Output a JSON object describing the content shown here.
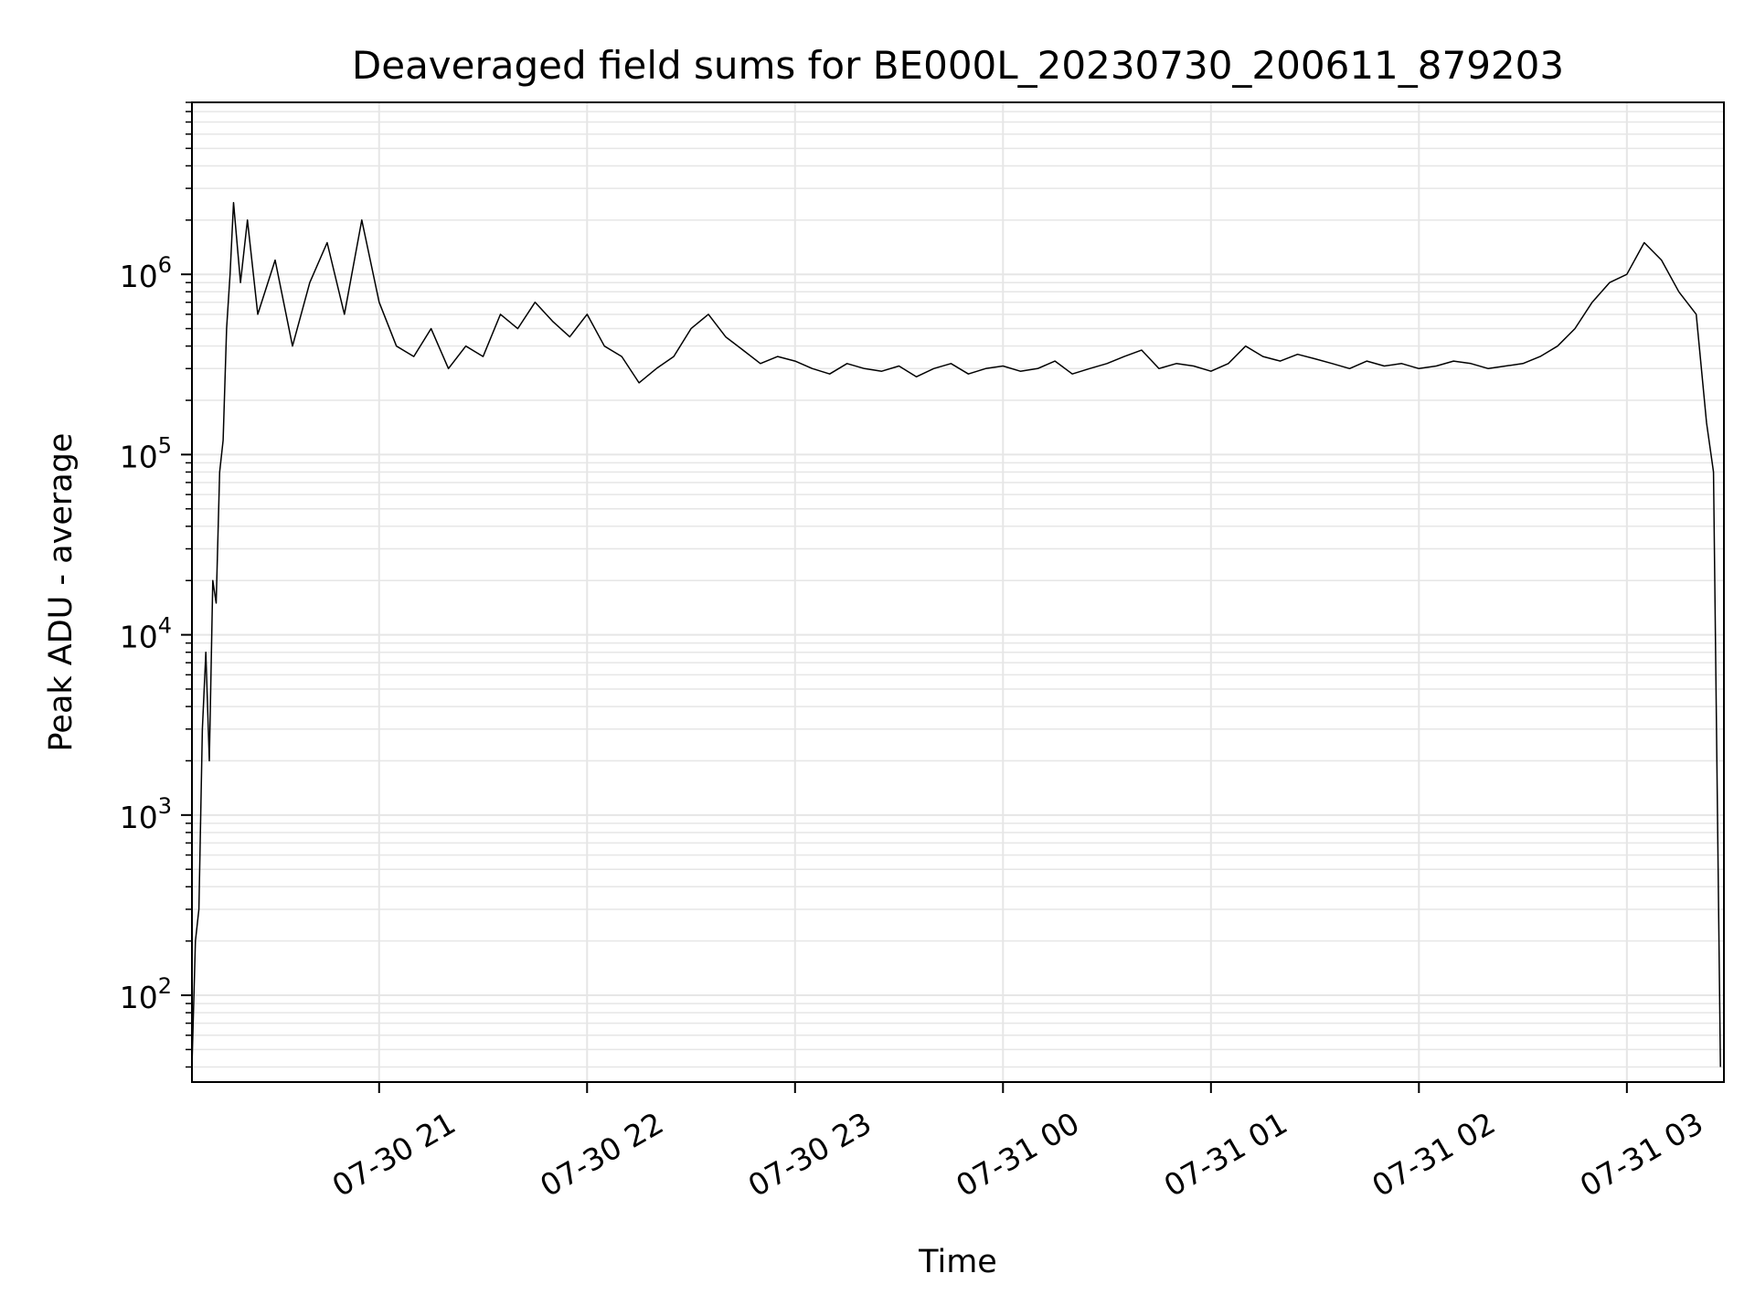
{
  "chart_data": {
    "type": "line",
    "title": "Deaveraged field sums for BE000L_20230730_200611_879203",
    "xlabel": "Time",
    "ylabel": "Peak ADU - average",
    "yscale": "log",
    "ylim": [
      33,
      9000000
    ],
    "xlim": [
      "07-30 20:06",
      "07-31 03:28"
    ],
    "grid": true,
    "line_color": "#000000",
    "grid_color": "#e6e6e6",
    "x_ticks": [
      {
        "value": "07-30 21:00",
        "label": "07-30 21"
      },
      {
        "value": "07-30 22:00",
        "label": "07-30 22"
      },
      {
        "value": "07-30 23:00",
        "label": "07-30 23"
      },
      {
        "value": "07-31 00:00",
        "label": "07-31 00"
      },
      {
        "value": "07-31 01:00",
        "label": "07-31 01"
      },
      {
        "value": "07-31 02:00",
        "label": "07-31 02"
      },
      {
        "value": "07-31 03:00",
        "label": "07-31 03"
      }
    ],
    "y_ticks": [
      {
        "value": 100,
        "base": "10",
        "exp": "2"
      },
      {
        "value": 1000,
        "base": "10",
        "exp": "3"
      },
      {
        "value": 10000,
        "base": "10",
        "exp": "4"
      },
      {
        "value": 100000,
        "base": "10",
        "exp": "5"
      },
      {
        "value": 1000000,
        "base": "10",
        "exp": "6"
      }
    ],
    "series": [
      {
        "points": [
          [
            "07-30 20:06",
            40
          ],
          [
            "07-30 20:07",
            200
          ],
          [
            "07-30 20:08",
            300
          ],
          [
            "07-30 20:09",
            3000
          ],
          [
            "07-30 20:10",
            8000
          ],
          [
            "07-30 20:11",
            2000
          ],
          [
            "07-30 20:12",
            20000
          ],
          [
            "07-30 20:13",
            15000
          ],
          [
            "07-30 20:14",
            80000
          ],
          [
            "07-30 20:15",
            120000
          ],
          [
            "07-30 20:16",
            500000
          ],
          [
            "07-30 20:17",
            1000000
          ],
          [
            "07-30 20:18",
            2500000
          ],
          [
            "07-30 20:19",
            1500000
          ],
          [
            "07-30 20:20",
            900000
          ],
          [
            "07-30 20:22",
            2000000
          ],
          [
            "07-30 20:25",
            600000
          ],
          [
            "07-30 20:30",
            1200000
          ],
          [
            "07-30 20:35",
            400000
          ],
          [
            "07-30 20:40",
            900000
          ],
          [
            "07-30 20:45",
            1500000
          ],
          [
            "07-30 20:50",
            600000
          ],
          [
            "07-30 20:55",
            2000000
          ],
          [
            "07-30 21:00",
            700000
          ],
          [
            "07-30 21:05",
            400000
          ],
          [
            "07-30 21:10",
            350000
          ],
          [
            "07-30 21:15",
            500000
          ],
          [
            "07-30 21:20",
            300000
          ],
          [
            "07-30 21:25",
            400000
          ],
          [
            "07-30 21:30",
            350000
          ],
          [
            "07-30 21:35",
            600000
          ],
          [
            "07-30 21:40",
            500000
          ],
          [
            "07-30 21:45",
            700000
          ],
          [
            "07-30 21:50",
            550000
          ],
          [
            "07-30 21:55",
            450000
          ],
          [
            "07-30 22:00",
            600000
          ],
          [
            "07-30 22:05",
            400000
          ],
          [
            "07-30 22:10",
            350000
          ],
          [
            "07-30 22:15",
            250000
          ],
          [
            "07-30 22:20",
            300000
          ],
          [
            "07-30 22:25",
            350000
          ],
          [
            "07-30 22:30",
            500000
          ],
          [
            "07-30 22:35",
            600000
          ],
          [
            "07-30 22:40",
            450000
          ],
          [
            "07-30 22:45",
            380000
          ],
          [
            "07-30 22:50",
            320000
          ],
          [
            "07-30 22:55",
            350000
          ],
          [
            "07-30 23:00",
            330000
          ],
          [
            "07-30 23:05",
            300000
          ],
          [
            "07-30 23:10",
            280000
          ],
          [
            "07-30 23:15",
            320000
          ],
          [
            "07-30 23:20",
            300000
          ],
          [
            "07-30 23:25",
            290000
          ],
          [
            "07-30 23:30",
            310000
          ],
          [
            "07-30 23:35",
            270000
          ],
          [
            "07-30 23:40",
            300000
          ],
          [
            "07-30 23:45",
            320000
          ],
          [
            "07-30 23:50",
            280000
          ],
          [
            "07-30 23:55",
            300000
          ],
          [
            "07-31 00:00",
            310000
          ],
          [
            "07-31 00:05",
            290000
          ],
          [
            "07-31 00:10",
            300000
          ],
          [
            "07-31 00:15",
            330000
          ],
          [
            "07-31 00:20",
            280000
          ],
          [
            "07-31 00:25",
            300000
          ],
          [
            "07-31 00:30",
            320000
          ],
          [
            "07-31 00:35",
            350000
          ],
          [
            "07-31 00:40",
            380000
          ],
          [
            "07-31 00:45",
            300000
          ],
          [
            "07-31 00:50",
            320000
          ],
          [
            "07-31 00:55",
            310000
          ],
          [
            "07-31 01:00",
            290000
          ],
          [
            "07-31 01:05",
            320000
          ],
          [
            "07-31 01:10",
            400000
          ],
          [
            "07-31 01:15",
            350000
          ],
          [
            "07-31 01:20",
            330000
          ],
          [
            "07-31 01:25",
            360000
          ],
          [
            "07-31 01:30",
            340000
          ],
          [
            "07-31 01:35",
            320000
          ],
          [
            "07-31 01:40",
            300000
          ],
          [
            "07-31 01:45",
            330000
          ],
          [
            "07-31 01:50",
            310000
          ],
          [
            "07-31 01:55",
            320000
          ],
          [
            "07-31 02:00",
            300000
          ],
          [
            "07-31 02:05",
            310000
          ],
          [
            "07-31 02:10",
            330000
          ],
          [
            "07-31 02:15",
            320000
          ],
          [
            "07-31 02:20",
            300000
          ],
          [
            "07-31 02:25",
            310000
          ],
          [
            "07-31 02:30",
            320000
          ],
          [
            "07-31 02:35",
            350000
          ],
          [
            "07-31 02:40",
            400000
          ],
          [
            "07-31 02:45",
            500000
          ],
          [
            "07-31 02:50",
            700000
          ],
          [
            "07-31 02:55",
            900000
          ],
          [
            "07-31 03:00",
            1000000
          ],
          [
            "07-31 03:05",
            1500000
          ],
          [
            "07-31 03:10",
            1200000
          ],
          [
            "07-31 03:15",
            800000
          ],
          [
            "07-31 03:20",
            600000
          ],
          [
            "07-31 03:23",
            150000
          ],
          [
            "07-31 03:25",
            80000
          ],
          [
            "07-31 03:27",
            40
          ]
        ]
      }
    ]
  }
}
